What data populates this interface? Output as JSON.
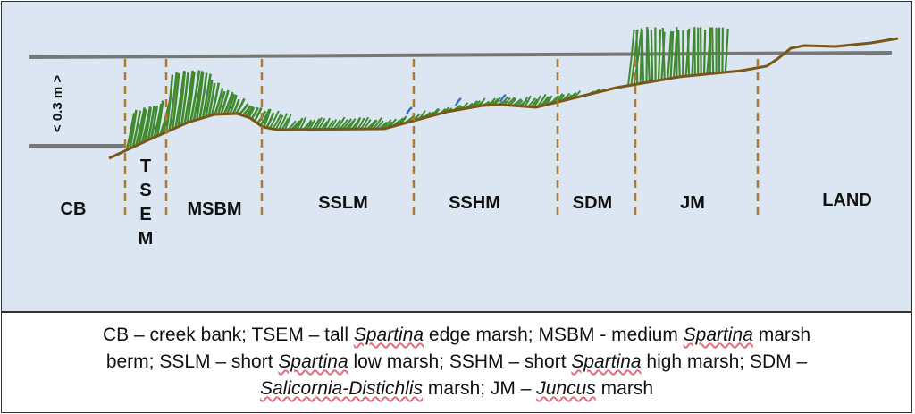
{
  "scale_label": "< 0.3 m >",
  "zones": [
    {
      "id": "cb",
      "label": "CB"
    },
    {
      "id": "tsem",
      "label": "T\nS\nE\nM"
    },
    {
      "id": "msbm",
      "label": "MSBM"
    },
    {
      "id": "sslm",
      "label": "SSLM"
    },
    {
      "id": "sshm",
      "label": "SSHM"
    },
    {
      "id": "sdm",
      "label": "SDM"
    },
    {
      "id": "jm",
      "label": "JM"
    },
    {
      "id": "land",
      "label": "LAND"
    }
  ],
  "caption": {
    "line1_a": "CB – creek bank; TSEM – tall ",
    "line1_b": "Spartina",
    "line1_c": " edge marsh; MSBM - medium ",
    "line1_d": "Spartina",
    "line1_e": " marsh",
    "line2_a": "berm; SSLM – short ",
    "line2_b": "Spartina",
    "line2_c": " low marsh; SSHM – short ",
    "line2_d": "Spartina",
    "line2_e": " high marsh; SDM –",
    "line3_a": "Salicornia-Distichlis",
    "line3_b": " marsh; JM – ",
    "line3_c": "Juncus",
    "line3_d": " marsh"
  },
  "colors": {
    "background": "#dbe6f2",
    "ground": "#7a5618",
    "reference_line": "#777777",
    "divider": "#b07a2a",
    "grass": "#3f8a2e",
    "water_mark": "#3a6fc2"
  }
}
